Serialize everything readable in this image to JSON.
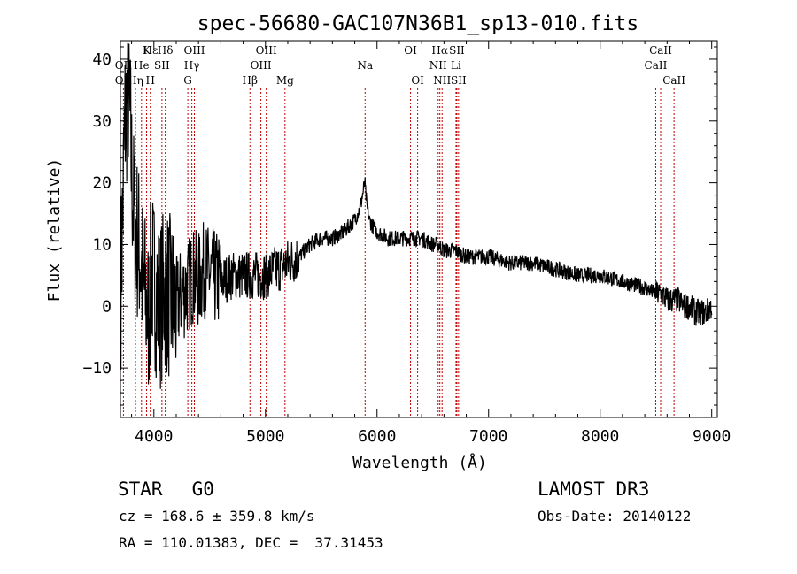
{
  "chart_data": {
    "type": "line",
    "title": "spec-56680-GAC107N36B1_sp13-010.fits",
    "xlabel": "Wavelength (Å)",
    "ylabel": "Flux (relative)",
    "xlim": [
      3700,
      9050
    ],
    "ylim": [
      -18,
      43
    ],
    "xticks": [
      4000,
      5000,
      6000,
      7000,
      8000,
      9000
    ],
    "yticks": [
      -10,
      0,
      10,
      20,
      30,
      40
    ],
    "series": [
      {
        "name": "spectrum",
        "x": [
          3700,
          3740,
          3770,
          3790,
          3800,
          3820,
          3840,
          3860,
          3880,
          3900,
          3920,
          3950,
          3980,
          4000,
          4050,
          4100,
          4150,
          4200,
          4250,
          4300,
          4350,
          4400,
          4450,
          4500,
          4600,
          4700,
          4800,
          4900,
          5000,
          5100,
          5200,
          5300,
          5400,
          5500,
          5600,
          5700,
          5800,
          5850,
          5880,
          5890,
          5900,
          5910,
          5930,
          5960,
          6000,
          6100,
          6200,
          6300,
          6400,
          6500,
          6550,
          6600,
          6700,
          6800,
          6900,
          7000,
          7200,
          7400,
          7600,
          7800,
          8000,
          8200,
          8400,
          8500,
          8550,
          8600,
          8650,
          8700,
          8750,
          8800,
          8850,
          8900,
          8950,
          9000
        ],
        "y": [
          0,
          30,
          35,
          28,
          22,
          15,
          12,
          10,
          8,
          4,
          2,
          -2,
          6,
          4,
          0,
          3,
          1,
          0,
          2,
          3,
          5,
          4,
          6,
          5,
          4,
          5,
          5,
          5,
          5,
          6,
          7,
          8,
          10,
          11,
          11,
          12,
          14,
          16,
          19,
          20,
          18,
          16,
          14,
          13,
          12,
          11,
          11,
          11,
          11,
          10,
          10,
          9,
          9,
          8,
          8,
          8,
          7,
          7,
          6,
          5,
          5,
          4,
          3,
          2,
          2,
          1,
          1,
          1,
          0,
          0,
          -1,
          -1,
          -1,
          0
        ]
      }
    ],
    "lines": [
      {
        "label": "Hε",
        "x": 3970,
        "row": 1
      },
      {
        "label": "Hδ",
        "x": 4102,
        "row": 1
      },
      {
        "label": "K",
        "x": 3934,
        "row": 1
      },
      {
        "label": "OIII",
        "x": 4363,
        "row": 1
      },
      {
        "label": "OIII",
        "x": 5007,
        "row": 1
      },
      {
        "label": "OI",
        "x": 6300,
        "row": 1
      },
      {
        "label": "Hα",
        "x": 6563,
        "row": 1
      },
      {
        "label": "SII",
        "x": 6716,
        "row": 1
      },
      {
        "label": "CaII",
        "x": 8542,
        "row": 1
      },
      {
        "label": "OII",
        "x": 3727,
        "row": 2
      },
      {
        "label": "He",
        "x": 3889,
        "row": 2
      },
      {
        "label": "SII",
        "x": 4072,
        "row": 2
      },
      {
        "label": "Hγ",
        "x": 4340,
        "row": 2
      },
      {
        "label": "OIII",
        "x": 4959,
        "row": 2
      },
      {
        "label": "Na",
        "x": 5893,
        "row": 2
      },
      {
        "label": "NII",
        "x": 6548,
        "row": 2
      },
      {
        "label": "Li",
        "x": 6708,
        "row": 2
      },
      {
        "label": "CaII",
        "x": 8498,
        "row": 2
      },
      {
        "label": "OII",
        "x": 3727,
        "row": 3
      },
      {
        "label": "Hη",
        "x": 3835,
        "row": 3
      },
      {
        "label": "H",
        "x": 3968,
        "row": 3
      },
      {
        "label": "G",
        "x": 4304,
        "row": 3
      },
      {
        "label": "Hβ",
        "x": 4861,
        "row": 3
      },
      {
        "label": "Mg",
        "x": 5175,
        "row": 3
      },
      {
        "label": "OI",
        "x": 6364,
        "row": 3
      },
      {
        "label": "NII",
        "x": 6583,
        "row": 3
      },
      {
        "label": "SII",
        "x": 6731,
        "row": 3
      },
      {
        "label": "CaII",
        "x": 8662,
        "row": 3
      }
    ],
    "line_color": "#c00000"
  },
  "footer": {
    "class": "STAR",
    "subclass": "G0",
    "survey": "LAMOST DR3",
    "cz": "cz = 168.6 ± 359.8 km/s",
    "obs_date": "Obs-Date: 20140122",
    "coords": "RA = 110.01383, DEC =  37.31453"
  }
}
